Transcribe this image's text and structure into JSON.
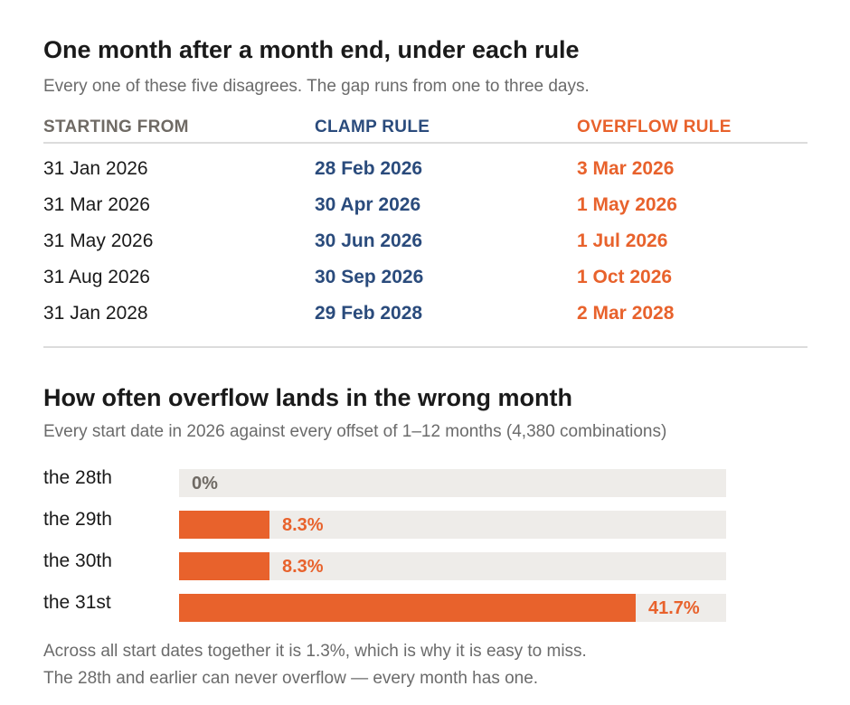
{
  "title": "One month after a month end, under each rule",
  "subtitle": "Every one of these five disagrees. The gap runs from one to three days.",
  "table": {
    "headers": {
      "start": "STARTING FROM",
      "clamp": "CLAMP RULE",
      "overflow": "OVERFLOW RULE"
    },
    "rows": [
      {
        "start": "31 Jan 2026",
        "clamp": "28 Feb 2026",
        "overflow": "3 Mar 2026"
      },
      {
        "start": "31 Mar 2026",
        "clamp": "30 Apr 2026",
        "overflow": "1 May 2026"
      },
      {
        "start": "31 May 2026",
        "clamp": "30 Jun 2026",
        "overflow": "1 Jul 2026"
      },
      {
        "start": "31 Aug 2026",
        "clamp": "30 Sep 2026",
        "overflow": "1 Oct 2026"
      },
      {
        "start": "31 Jan 2028",
        "clamp": "29 Feb 2028",
        "overflow": "2 Mar 2028"
      }
    ]
  },
  "chart_data": {
    "type": "bar",
    "orientation": "horizontal",
    "title": "How often overflow lands in the wrong month",
    "subtitle": "Every start date in 2026 against every offset of 1–12 months (4,380 combinations)",
    "categories": [
      "the 28th",
      "the 29th",
      "the 30th",
      "the 31st"
    ],
    "values": [
      0,
      8.3,
      8.3,
      41.7
    ],
    "value_labels": [
      "0%",
      "8.3%",
      "8.3%",
      "41.7%"
    ],
    "xlim": [
      0,
      50
    ],
    "grid": false,
    "legend": "none",
    "colors": {
      "fill": "#e8622c",
      "track": "#eeece9",
      "zero_label": "#6f6a64"
    }
  },
  "notes": [
    "Across all start dates together it is 1.3%, which is why it is easy to miss.",
    "The 28th and earlier can never overflow — every month has one."
  ],
  "colors": {
    "clamp": "#2a4b7c",
    "overflow": "#e8622c",
    "muted": "#6b6b6b"
  }
}
